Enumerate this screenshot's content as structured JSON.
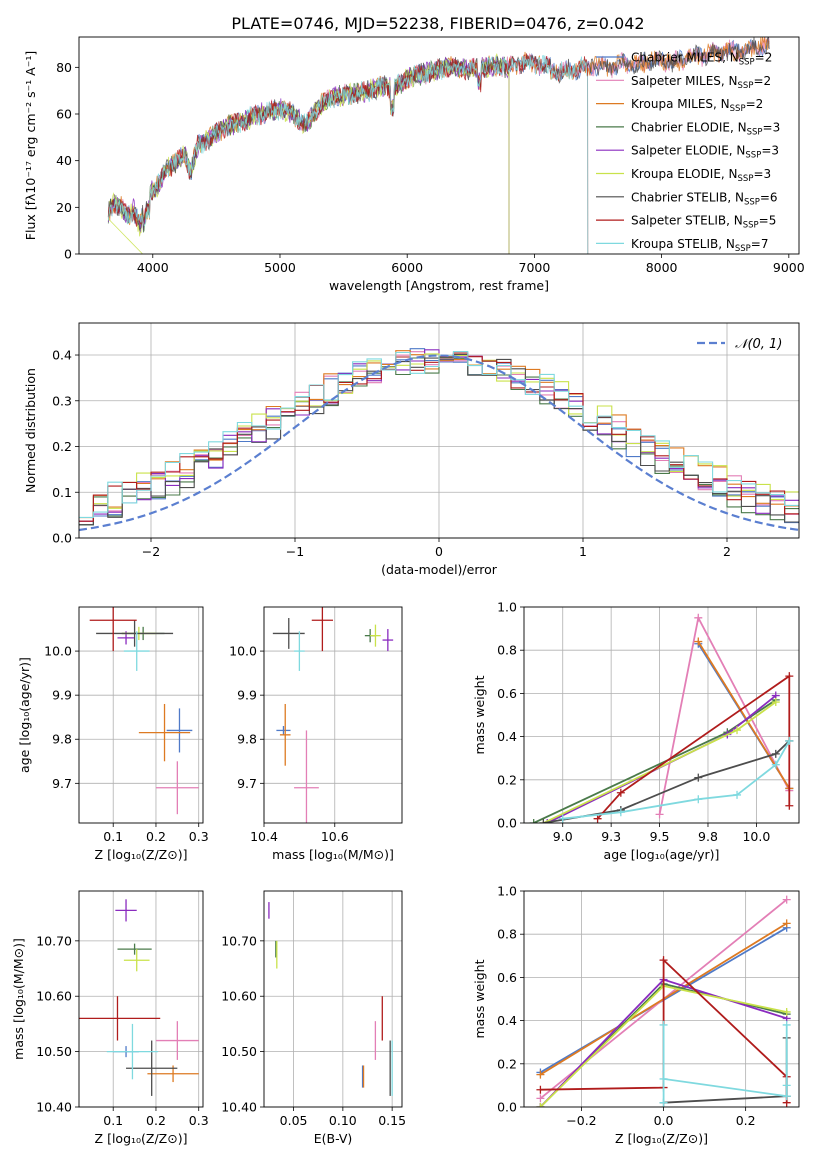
{
  "figure_title": "PLATE=0746, MJD=52238, FIBERID=0476, z=0.042",
  "colors": {
    "chabrier_miles": "#4f7ac8",
    "salpeter_miles": "#e37fb6",
    "kroupa_miles": "#dd7a22",
    "chabrier_elodie": "#4a7a4a",
    "salpeter_elodie": "#8a2bbf",
    "kroupa_elodie": "#c9e24a",
    "chabrier_stelib": "#4d4d4d",
    "salpeter_stelib": "#b01c1c",
    "kroupa_stelib": "#7fd9df",
    "gauss": "#5b7fd0"
  },
  "chart_data": [
    {
      "id": "spectrum",
      "type": "line",
      "xlabel": "wavelength [Angstrom, rest frame]",
      "ylabel": "Flux [fλ10⁻¹⁷ erg cm⁻² s⁻¹ A⁻¹]",
      "xlim": [
        3420,
        9080
      ],
      "ylim": [
        0,
        93
      ],
      "xticks": [
        4000,
        5000,
        6000,
        7000,
        8000,
        9000
      ],
      "yticks": [
        0,
        20,
        40,
        60,
        80
      ],
      "grid": false,
      "legend_position": "top-right",
      "data_range": [
        3650,
        8850
      ],
      "envelope": {
        "x": [
          3650,
          3700,
          3750,
          3800,
          3850,
          3900,
          3950,
          4000,
          4050,
          4100,
          4150,
          4200,
          4250,
          4300,
          4350,
          4400,
          4450,
          4500,
          4600,
          4700,
          4800,
          4900,
          5000,
          5100,
          5200,
          5300,
          5400,
          5500,
          5600,
          5700,
          5800,
          5900,
          6000,
          6100,
          6200,
          6300,
          6400,
          6500,
          6600,
          6700,
          6800,
          6900,
          7000,
          7100,
          7200,
          7300,
          7400,
          7500,
          7600,
          7700,
          7800,
          7900,
          8000,
          8100,
          8200,
          8300,
          8400,
          8500,
          8600,
          8700,
          8800,
          8850
        ],
        "y": [
          18,
          22,
          20,
          16,
          19,
          12,
          24,
          27,
          30,
          36,
          38,
          40,
          43,
          35,
          46,
          48,
          50,
          52,
          55,
          57,
          59,
          61,
          62,
          60,
          55,
          63,
          67,
          68,
          69,
          70,
          72,
          71,
          75,
          77,
          78,
          80,
          80,
          79,
          80,
          81,
          80,
          82,
          82,
          80,
          78,
          79,
          80,
          81,
          80,
          82,
          81,
          83,
          83,
          82,
          84,
          85,
          86,
          87,
          87,
          88,
          89,
          90
        ]
      },
      "series": [
        {
          "name": "Chabrier MILES, N",
          "ssp": "=2",
          "color_key": "chabrier_miles",
          "end": 8850
        },
        {
          "name": "Salpeter MILES, N",
          "ssp": "=2",
          "color_key": "salpeter_miles",
          "end": 8850
        },
        {
          "name": "Kroupa MILES, N",
          "ssp": "=2",
          "color_key": "kroupa_miles",
          "end": 8850
        },
        {
          "name": "Chabrier ELODIE, N",
          "ssp": "=3",
          "color_key": "chabrier_elodie",
          "end": 6800
        },
        {
          "name": "Salpeter ELODIE, N",
          "ssp": "=3",
          "color_key": "salpeter_elodie",
          "end": 6800
        },
        {
          "name": "Kroupa ELODIE, N",
          "ssp": "=3",
          "color_key": "kroupa_elodie",
          "end": 6800
        },
        {
          "name": "Chabrier STELIB, N",
          "ssp": "=6",
          "color_key": "chabrier_stelib",
          "end": 8850
        },
        {
          "name": "Salpeter STELIB, N",
          "ssp": "=5",
          "color_key": "salpeter_stelib",
          "end": 7420
        },
        {
          "name": "Kroupa STELIB, N",
          "ssp": "=7",
          "color_key": "kroupa_stelib",
          "end": 7420
        }
      ]
    },
    {
      "id": "residuals",
      "type": "line",
      "xlabel": "(data-model)/error",
      "ylabel": "Normed distribution",
      "xlim": [
        -2.5,
        2.5
      ],
      "ylim": [
        0,
        0.47
      ],
      "xticks": [
        -2,
        -1,
        0,
        1,
        2
      ],
      "yticks": [
        0.0,
        0.1,
        0.2,
        0.3,
        0.4
      ],
      "grid": true,
      "legend_position": "top-right",
      "legend_label": "𝒩(0, 1)",
      "gaussian": {
        "mu": 0,
        "sigma": 1
      },
      "bin_width": 0.1
    },
    {
      "id": "age_vs_Z",
      "type": "scatter",
      "xlabel": "Z [log₁₀(Z/Z⊙)]",
      "ylabel": "age  [log₁₀(age/yr)]",
      "xlim": [
        0.02,
        0.31
      ],
      "ylim": [
        9.61,
        10.1
      ],
      "xticks": [
        0.1,
        0.2,
        0.3
      ],
      "yticks": [
        9.7,
        9.8,
        9.9,
        10.0
      ],
      "grid": true,
      "points": [
        {
          "color_key": "chabrier_miles",
          "x": 0.255,
          "y": 9.82,
          "xerr": 0.03,
          "yerr": 0.05
        },
        {
          "color_key": "salpeter_miles",
          "x": 0.25,
          "y": 9.69,
          "xerr": 0.05,
          "yerr": 0.06
        },
        {
          "color_key": "kroupa_miles",
          "x": 0.22,
          "y": 9.815,
          "xerr": 0.06,
          "yerr": 0.065
        },
        {
          "color_key": "chabrier_elodie",
          "x": 0.17,
          "y": 10.04,
          "xerr": 0.05,
          "yerr": 0.015
        },
        {
          "color_key": "salpeter_elodie",
          "x": 0.13,
          "y": 10.03,
          "xerr": 0.02,
          "yerr": 0.015
        },
        {
          "color_key": "kroupa_elodie",
          "x": 0.16,
          "y": 10.04,
          "xerr": 0.04,
          "yerr": 0.015
        },
        {
          "color_key": "chabrier_stelib",
          "x": 0.15,
          "y": 10.04,
          "xerr": 0.09,
          "yerr": 0.03
        },
        {
          "color_key": "salpeter_stelib",
          "x": 0.1,
          "y": 10.07,
          "xerr": 0.055,
          "yerr": 0.07
        },
        {
          "color_key": "kroupa_stelib",
          "x": 0.155,
          "y": 10.0,
          "xerr": 0.03,
          "yerr": 0.045
        }
      ]
    },
    {
      "id": "age_vs_mass",
      "type": "scatter",
      "xlabel": "mass [log₁₀(M/M⊙)]",
      "ylabel": "",
      "xlim": [
        10.4,
        10.79
      ],
      "ylim": [
        9.61,
        10.1
      ],
      "xticks": [
        10.4,
        10.6
      ],
      "yticks": [
        9.7,
        9.8,
        9.9,
        10.0
      ],
      "grid": true,
      "points": [
        {
          "color_key": "chabrier_miles",
          "x": 10.455,
          "y": 9.82,
          "xerr": 0.02,
          "yerr": 0.01
        },
        {
          "color_key": "salpeter_miles",
          "x": 10.52,
          "y": 9.69,
          "xerr": 0.035,
          "yerr": 0.13
        },
        {
          "color_key": "kroupa_miles",
          "x": 10.46,
          "y": 9.81,
          "xerr": 0.015,
          "yerr": 0.07
        },
        {
          "color_key": "chabrier_elodie",
          "x": 10.7,
          "y": 10.035,
          "xerr": 0.015,
          "yerr": 0.015
        },
        {
          "color_key": "salpeter_elodie",
          "x": 10.75,
          "y": 10.025,
          "xerr": 0.015,
          "yerr": 0.025
        },
        {
          "color_key": "kroupa_elodie",
          "x": 10.715,
          "y": 10.035,
          "xerr": 0.015,
          "yerr": 0.025
        },
        {
          "color_key": "chabrier_stelib",
          "x": 10.47,
          "y": 10.04,
          "xerr": 0.045,
          "yerr": 0.035
        },
        {
          "color_key": "salpeter_stelib",
          "x": 10.565,
          "y": 10.07,
          "xerr": 0.03,
          "yerr": 0.07
        },
        {
          "color_key": "kroupa_stelib",
          "x": 10.5,
          "y": 10.0,
          "xerr": 0.015,
          "yerr": 0.045
        }
      ]
    },
    {
      "id": "mass_weight_vs_age",
      "type": "line",
      "xlabel": "age  [log₁₀(age/yr)]",
      "ylabel": "mass weight",
      "xlim": [
        8.8,
        10.22
      ],
      "ylim": [
        0,
        1
      ],
      "xticks": [
        9.0,
        9.25,
        9.5,
        9.75,
        10.0
      ],
      "yticks": [
        0.0,
        0.2,
        0.4,
        0.6,
        0.8,
        1.0
      ],
      "grid": true,
      "series": [
        {
          "color_key": "chabrier_miles",
          "x": [
            9.7,
            10.17
          ],
          "y": [
            0.83,
            0.16
          ]
        },
        {
          "color_key": "salpeter_miles",
          "x": [
            9.5,
            9.7,
            10.17
          ],
          "y": [
            0.04,
            0.95,
            0.15
          ]
        },
        {
          "color_key": "kroupa_miles",
          "x": [
            9.7,
            10.17
          ],
          "y": [
            0.84,
            0.16
          ]
        },
        {
          "color_key": "chabrier_elodie",
          "x": [
            8.85,
            9.85,
            10.1
          ],
          "y": [
            0.0,
            0.42,
            0.57
          ]
        },
        {
          "color_key": "salpeter_elodie",
          "x": [
            8.92,
            9.85,
            10.1
          ],
          "y": [
            0.0,
            0.41,
            0.59
          ]
        },
        {
          "color_key": "kroupa_elodie",
          "x": [
            8.9,
            9.9,
            10.1
          ],
          "y": [
            0.0,
            0.43,
            0.56
          ]
        },
        {
          "color_key": "chabrier_stelib",
          "x": [
            8.9,
            9.3,
            9.7,
            10.1,
            10.17
          ],
          "y": [
            0.0,
            0.06,
            0.21,
            0.32,
            0.38
          ]
        },
        {
          "color_key": "salpeter_stelib",
          "x": [
            9.18,
            9.3,
            10.17,
            10.17
          ],
          "y": [
            0.02,
            0.14,
            0.68,
            0.08
          ]
        },
        {
          "color_key": "kroupa_stelib",
          "x": [
            9.0,
            9.3,
            9.7,
            9.9,
            10.1,
            10.17
          ],
          "y": [
            0.02,
            0.05,
            0.11,
            0.13,
            0.27,
            0.38
          ]
        }
      ]
    },
    {
      "id": "mass_vs_Z",
      "type": "scatter",
      "xlabel": "Z [log₁₀(Z/Z⊙)]",
      "ylabel": "mass [log₁₀(M/M⊙)]",
      "xlim": [
        0.02,
        0.31
      ],
      "ylim": [
        10.4,
        10.79
      ],
      "xticks": [
        0.1,
        0.2,
        0.3
      ],
      "yticks": [
        10.4,
        10.5,
        10.6,
        10.7
      ],
      "grid": true,
      "points": [
        {
          "color_key": "chabrier_miles",
          "x": 0.13,
          "y": 10.5,
          "xerr": 0.03,
          "yerr": 0.01
        },
        {
          "color_key": "salpeter_miles",
          "x": 0.25,
          "y": 10.52,
          "xerr": 0.05,
          "yerr": 0.035
        },
        {
          "color_key": "kroupa_miles",
          "x": 0.24,
          "y": 10.46,
          "xerr": 0.06,
          "yerr": 0.015
        },
        {
          "color_key": "chabrier_elodie",
          "x": 0.15,
          "y": 10.685,
          "xerr": 0.04,
          "yerr": 0.01
        },
        {
          "color_key": "salpeter_elodie",
          "x": 0.13,
          "y": 10.755,
          "xerr": 0.025,
          "yerr": 0.02
        },
        {
          "color_key": "kroupa_elodie",
          "x": 0.155,
          "y": 10.665,
          "xerr": 0.03,
          "yerr": 0.02
        },
        {
          "color_key": "chabrier_stelib",
          "x": 0.19,
          "y": 10.47,
          "xerr": 0.06,
          "yerr": 0.05
        },
        {
          "color_key": "salpeter_stelib",
          "x": 0.11,
          "y": 10.56,
          "xerr": 0.1,
          "yerr": 0.04
        },
        {
          "color_key": "kroupa_stelib",
          "x": 0.145,
          "y": 10.5,
          "xerr": 0.06,
          "yerr": 0.05
        }
      ]
    },
    {
      "id": "mass_vs_ebv",
      "type": "scatter",
      "xlabel": "E(B-V)",
      "ylabel": "",
      "xlim": [
        0.02,
        0.16
      ],
      "ylim": [
        10.4,
        10.79
      ],
      "xticks": [
        0.05,
        0.1,
        0.15
      ],
      "yticks": [
        10.4,
        10.5,
        10.6,
        10.7
      ],
      "grid": true,
      "points": [
        {
          "color_key": "chabrier_miles",
          "x": 0.12,
          "y": 10.455,
          "xerr": 0,
          "yerr": 0.02
        },
        {
          "color_key": "salpeter_miles",
          "x": 0.133,
          "y": 10.52,
          "xerr": 0,
          "yerr": 0.035
        },
        {
          "color_key": "kroupa_miles",
          "x": 0.121,
          "y": 10.455,
          "xerr": 0,
          "yerr": 0.02
        },
        {
          "color_key": "chabrier_elodie",
          "x": 0.032,
          "y": 10.685,
          "xerr": 0,
          "yerr": 0.015
        },
        {
          "color_key": "salpeter_elodie",
          "x": 0.025,
          "y": 10.755,
          "xerr": 0,
          "yerr": 0.015
        },
        {
          "color_key": "kroupa_elodie",
          "x": 0.033,
          "y": 10.675,
          "xerr": 0,
          "yerr": 0.025
        },
        {
          "color_key": "chabrier_stelib",
          "x": 0.148,
          "y": 10.47,
          "xerr": 0,
          "yerr": 0.05
        },
        {
          "color_key": "salpeter_stelib",
          "x": 0.14,
          "y": 10.56,
          "xerr": 0,
          "yerr": 0.04
        },
        {
          "color_key": "kroupa_stelib",
          "x": 0.15,
          "y": 10.47,
          "xerr": 0,
          "yerr": 0.05
        }
      ]
    },
    {
      "id": "mass_weight_vs_Z",
      "type": "line",
      "xlabel": "Z [log₁₀(Z/Z⊙)]",
      "ylabel": "mass weight",
      "xlim": [
        -0.34,
        0.33
      ],
      "ylim": [
        0,
        1
      ],
      "xticks": [
        -0.2,
        0.0,
        0.2
      ],
      "yticks": [
        0.0,
        0.2,
        0.4,
        0.6,
        0.8,
        1.0
      ],
      "grid": true,
      "series": [
        {
          "color_key": "chabrier_miles",
          "x": [
            -0.3,
            0.3
          ],
          "y": [
            0.16,
            0.83
          ]
        },
        {
          "color_key": "salpeter_miles",
          "x": [
            -0.3,
            0.3
          ],
          "y": [
            0.04,
            0.96
          ]
        },
        {
          "color_key": "kroupa_miles",
          "x": [
            -0.3,
            0.3
          ],
          "y": [
            0.15,
            0.85
          ]
        },
        {
          "color_key": "chabrier_elodie",
          "x": [
            -0.3,
            0.0,
            0.3
          ],
          "y": [
            0.0,
            0.57,
            0.43
          ]
        },
        {
          "color_key": "salpeter_elodie",
          "x": [
            -0.3,
            0.0,
            0.3
          ],
          "y": [
            0.0,
            0.59,
            0.41
          ]
        },
        {
          "color_key": "kroupa_elodie",
          "x": [
            -0.3,
            0.0,
            0.3
          ],
          "y": [
            0.0,
            0.56,
            0.44
          ]
        },
        {
          "color_key": "chabrier_stelib",
          "x": [
            0.0,
            0.3,
            0.3
          ],
          "y": [
            0.02,
            0.05,
            0.32
          ]
        },
        {
          "color_key": "salpeter_stelib",
          "x": [
            -0.3,
            0.0,
            0.0,
            0.3,
            0.3
          ],
          "y": [
            0.08,
            0.09,
            0.68,
            0.14,
            0.02
          ]
        },
        {
          "color_key": "kroupa_stelib",
          "x": [
            0.0,
            0.0,
            0.0,
            0.3,
            0.3,
            0.3
          ],
          "y": [
            0.38,
            0.02,
            0.13,
            0.05,
            0.38,
            0.1
          ]
        }
      ]
    }
  ]
}
